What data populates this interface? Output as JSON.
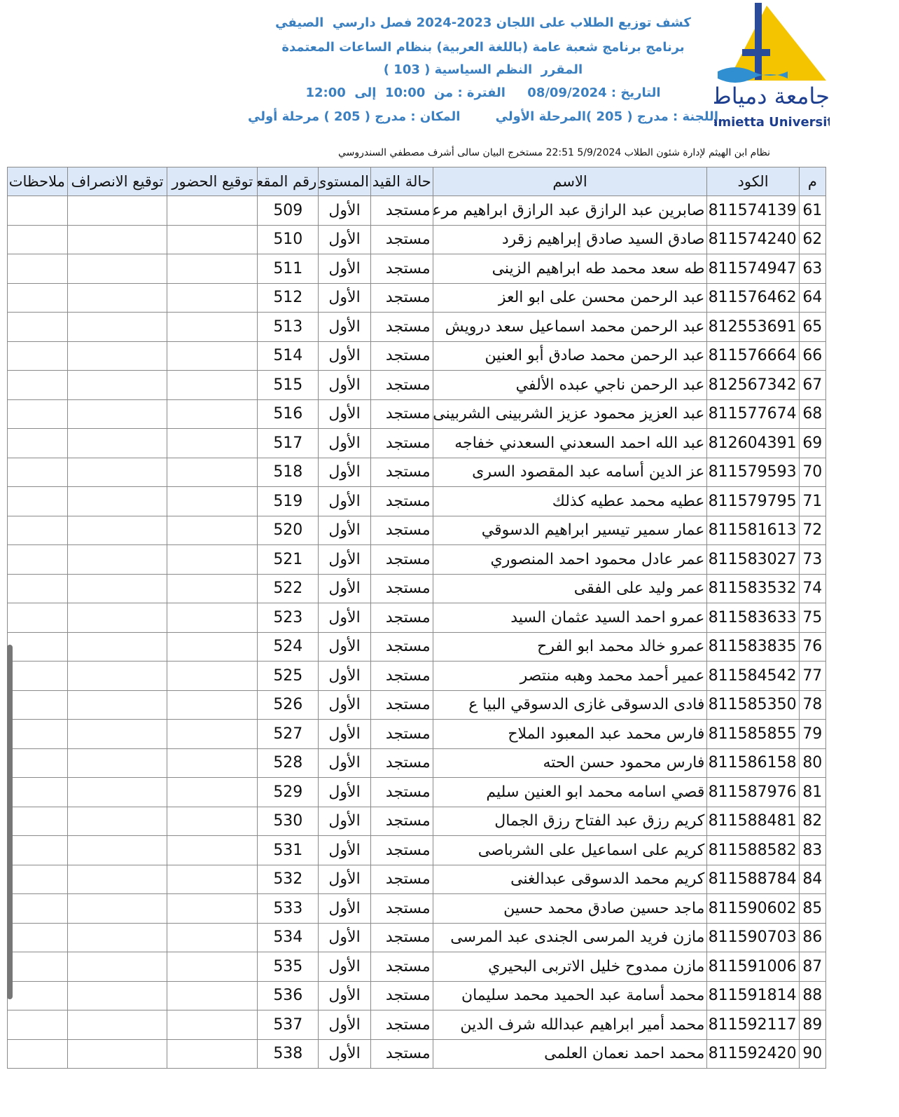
{
  "header": {
    "lines": [
      "كشف توزيع الطلاب على اللجان 2023-2024 فصل دارسي  الصيفي",
      "برنامج برنامج شعبة عامة (باللغة العربية) بنظام الساعات المعتمدة",
      "المقرر  النظم السياسية ( 103 )",
      "التاريخ : 08/09/2024     الفترة : من  10:00  إلى  12:00",
      "اللجنة : مدرج ( 205 )المرحلة الأولي        المكان : مدرج ( 205 ) مرحلة أولي"
    ],
    "system_line": "نظام ابن الهيثم لإدارة شئون الطلاب 5/9/2024 22:51 مستخرج البيان سالى أشرف مصطفي السندروسي"
  },
  "logo": {
    "name_ar": "جامعة دمياط",
    "name_en": "Damietta University"
  },
  "table": {
    "headers": [
      "م",
      "الكود",
      "الاسم",
      "حالة القيد",
      "المستوى",
      "رقم المقعد",
      "توقيع الحضور",
      "توقيع الانصراف",
      "ملاحظات"
    ],
    "rows": [
      [
        "61",
        "811574139",
        "صابرين عبد الرازق عبد الرازق ابراهيم مرعي",
        "مستجد",
        "الأول",
        "509"
      ],
      [
        "62",
        "811574240",
        "صادق السيد صادق إبراهيم زقرد",
        "مستجد",
        "الأول",
        "510"
      ],
      [
        "63",
        "811574947",
        "طه سعد محمد طه ابراهيم الزينى",
        "مستجد",
        "الأول",
        "511"
      ],
      [
        "64",
        "811576462",
        "عبد الرحمن محسن على ابو العز",
        "مستجد",
        "الأول",
        "512"
      ],
      [
        "65",
        "812553691",
        "عبد الرحمن محمد اسماعيل سعد درويش",
        "مستجد",
        "الأول",
        "513"
      ],
      [
        "66",
        "811576664",
        "عبد الرحمن محمد صادق أبو العنين",
        "مستجد",
        "الأول",
        "514"
      ],
      [
        "67",
        "812567342",
        "عبد الرحمن ناجي عبده الألفي",
        "مستجد",
        "الأول",
        "515"
      ],
      [
        "68",
        "811577674",
        "عبد العزيز محمود عزيز الشربينى الشربينى",
        "مستجد",
        "الأول",
        "516"
      ],
      [
        "69",
        "812604391",
        "عبد الله احمد السعدني السعدني خفاجه",
        "مستجد",
        "الأول",
        "517"
      ],
      [
        "70",
        "811579593",
        "عز الدين أسامه عبد المقصود السرى",
        "مستجد",
        "الأول",
        "518"
      ],
      [
        "71",
        "811579795",
        "عطيه محمد عطيه كذلك",
        "مستجد",
        "الأول",
        "519"
      ],
      [
        "72",
        "811581613",
        "عمار سمير تيسير ابراهيم الدسوقي",
        "مستجد",
        "الأول",
        "520"
      ],
      [
        "73",
        "811583027",
        "عمر عادل محمود احمد المنصوري",
        "مستجد",
        "الأول",
        "521"
      ],
      [
        "74",
        "811583532",
        "عمر وليد على الفقى",
        "مستجد",
        "الأول",
        "522"
      ],
      [
        "75",
        "811583633",
        "عمرو احمد السيد عثمان السيد",
        "مستجد",
        "الأول",
        "523"
      ],
      [
        "76",
        "811583835",
        "عمرو خالد محمد ابو الفرح",
        "مستجد",
        "الأول",
        "524"
      ],
      [
        "77",
        "811584542",
        "عمير أحمد محمد وهبه منتصر",
        "مستجد",
        "الأول",
        "525"
      ],
      [
        "78",
        "811585350",
        "فادى الدسوقى غازى الدسوقي البيا ع",
        "مستجد",
        "الأول",
        "526"
      ],
      [
        "79",
        "811585855",
        "فارس محمد عبد المعبود الملاح",
        "مستجد",
        "الأول",
        "527"
      ],
      [
        "80",
        "811586158",
        "فارس محمود حسن الحته",
        "مستجد",
        "الأول",
        "528"
      ],
      [
        "81",
        "811587976",
        "قصي اسامه محمد ابو العنين سليم",
        "مستجد",
        "الأول",
        "529"
      ],
      [
        "82",
        "811588481",
        "كريم رزق عبد الفتاح رزق الجمال",
        "مستجد",
        "الأول",
        "530"
      ],
      [
        "83",
        "811588582",
        "كريم على اسماعيل على الشرباصى",
        "مستجد",
        "الأول",
        "531"
      ],
      [
        "84",
        "811588784",
        "كريم محمد الدسوقى عبدالغنى",
        "مستجد",
        "الأول",
        "532"
      ],
      [
        "85",
        "811590602",
        "ماجد حسين صادق محمد حسين",
        "مستجد",
        "الأول",
        "533"
      ],
      [
        "86",
        "811590703",
        "مازن فريد المرسى الجندى عبد المرسى",
        "مستجد",
        "الأول",
        "534"
      ],
      [
        "87",
        "811591006",
        "مازن ممدوح خليل الاتربى البحيري",
        "مستجد",
        "الأول",
        "535"
      ],
      [
        "88",
        "811591814",
        "محمد أسامة عبد الحميد محمد سليمان",
        "مستجد",
        "الأول",
        "536"
      ],
      [
        "89",
        "811592117",
        "محمد أمير ابراهيم عبدالله شرف الدين",
        "مستجد",
        "الأول",
        "537"
      ],
      [
        "90",
        "811592420",
        "محمد احمد نعمان العلمى",
        "مستجد",
        "الأول",
        "538"
      ]
    ]
  }
}
